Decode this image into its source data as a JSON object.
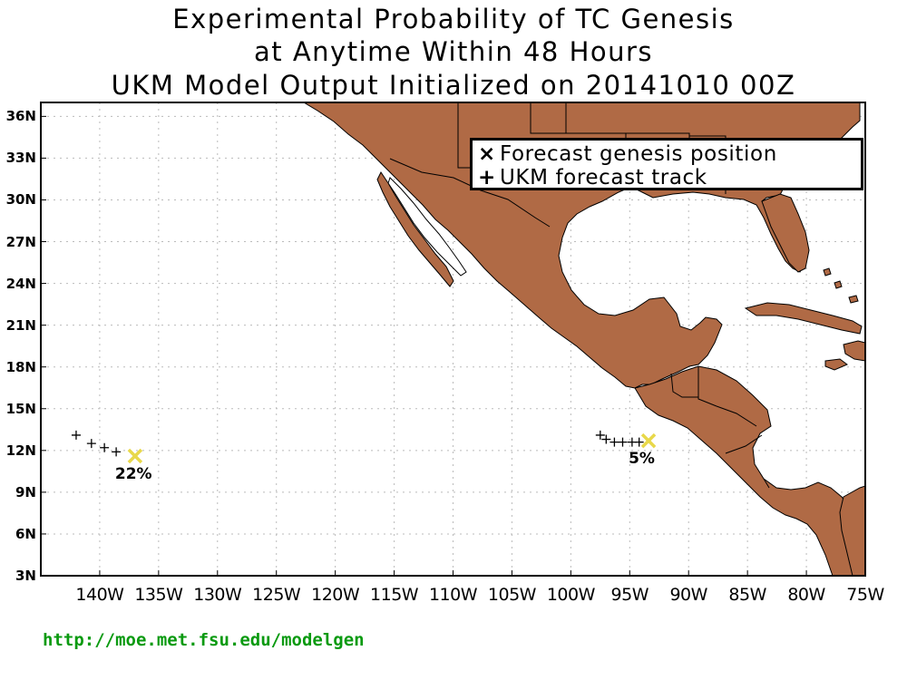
{
  "title": {
    "line1": "Experimental Probability of TC Genesis",
    "line2": "at Anytime Within 48 Hours",
    "line3": "UKM Model Output Initialized on 20141010 00Z"
  },
  "map": {
    "lon_range": [
      -145,
      -75
    ],
    "lat_range": [
      3,
      37
    ],
    "land_color": "#b06a45",
    "grid": true,
    "lat_ticks": [
      "36N",
      "33N",
      "30N",
      "27N",
      "24N",
      "21N",
      "18N",
      "15N",
      "12N",
      "9N",
      "6N",
      "3N"
    ],
    "lon_ticks": [
      "140W",
      "135W",
      "130W",
      "125W",
      "120W",
      "115W",
      "110W",
      "105W",
      "100W",
      "95W",
      "90W",
      "85W",
      "80W",
      "75W"
    ]
  },
  "legend": {
    "genesis_symbol": "×",
    "genesis_label": "Forecast genesis position",
    "track_symbol": "+",
    "track_label": "UKM forecast track"
  },
  "systems": [
    {
      "probability_label": "22%",
      "genesis": {
        "lon": -137.0,
        "lat": 11.6
      },
      "track": [
        {
          "lon": -142.0,
          "lat": 13.1
        },
        {
          "lon": -140.7,
          "lat": 12.5
        },
        {
          "lon": -139.6,
          "lat": 12.2
        },
        {
          "lon": -138.6,
          "lat": 11.9
        }
      ]
    },
    {
      "probability_label": "5%",
      "genesis": {
        "lon": -93.4,
        "lat": 12.7
      },
      "track": [
        {
          "lon": -97.5,
          "lat": 13.1
        },
        {
          "lon": -97.0,
          "lat": 12.8
        },
        {
          "lon": -96.3,
          "lat": 12.6
        },
        {
          "lon": -95.6,
          "lat": 12.6
        },
        {
          "lon": -94.8,
          "lat": 12.6
        },
        {
          "lon": -94.2,
          "lat": 12.6
        }
      ]
    }
  ],
  "colors": {
    "genesis_marker": "#e8d84a",
    "track_marker": "#000000",
    "url_text": "#0a9a10"
  },
  "footer": {
    "url": "http://moe.met.fsu.edu/modelgen"
  }
}
